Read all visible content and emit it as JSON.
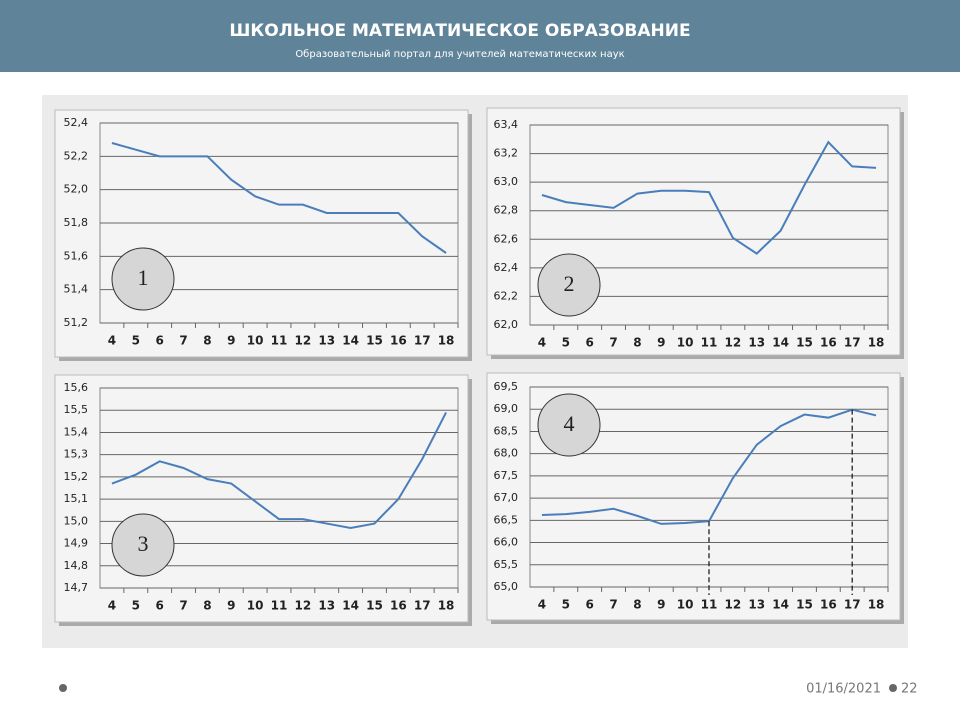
{
  "header": {
    "title": "ШКОЛЬНОЕ МАТЕМАТИЧЕСКОЕ ОБРАЗОВАНИЕ",
    "subtitle": "Образовательный портал для учителей математических наук"
  },
  "footer": {
    "date": "01/16/2021",
    "page": "22"
  },
  "chart_data": [
    {
      "type": "line",
      "annotation": "1",
      "color": "#4a7ebb",
      "grid": true,
      "categories": [
        "4",
        "5",
        "6",
        "7",
        "8",
        "9",
        "10",
        "11",
        "12",
        "13",
        "14",
        "15",
        "16",
        "17",
        "18"
      ],
      "values": [
        52.28,
        52.24,
        52.2,
        52.2,
        52.2,
        52.06,
        51.96,
        51.91,
        51.91,
        51.86,
        51.86,
        51.86,
        51.86,
        51.72,
        51.62
      ],
      "ylim": [
        51.2,
        52.4
      ],
      "yticks": [
        {
          "value": 51.2,
          "label": "51,2"
        },
        {
          "value": 51.4,
          "label": "51,4"
        },
        {
          "value": 51.6,
          "label": "51,6"
        },
        {
          "value": 51.8,
          "label": "51,8"
        },
        {
          "value": 52.0,
          "label": "52,0"
        },
        {
          "value": 52.2,
          "label": "52,2"
        },
        {
          "value": 52.4,
          "label": "52,4"
        }
      ]
    },
    {
      "type": "line",
      "annotation": "2",
      "color": "#4a7ebb",
      "grid": true,
      "categories": [
        "4",
        "5",
        "6",
        "7",
        "8",
        "9",
        "10",
        "11",
        "12",
        "13",
        "14",
        "15",
        "16",
        "17",
        "18"
      ],
      "values": [
        62.91,
        62.86,
        62.84,
        62.82,
        62.92,
        62.94,
        62.94,
        62.93,
        62.61,
        62.5,
        62.66,
        62.98,
        63.28,
        63.11,
        63.1
      ],
      "ylim": [
        62.0,
        63.4
      ],
      "yticks": [
        {
          "value": 62.0,
          "label": "62,0"
        },
        {
          "value": 62.2,
          "label": "62,2"
        },
        {
          "value": 62.4,
          "label": "62,4"
        },
        {
          "value": 62.6,
          "label": "62,6"
        },
        {
          "value": 62.8,
          "label": "62,8"
        },
        {
          "value": 63.0,
          "label": "63,0"
        },
        {
          "value": 63.2,
          "label": "63,2"
        },
        {
          "value": 63.4,
          "label": "63,4"
        }
      ]
    },
    {
      "type": "line",
      "annotation": "3",
      "color": "#4a7ebb",
      "grid": true,
      "categories": [
        "4",
        "5",
        "6",
        "7",
        "8",
        "9",
        "10",
        "11",
        "12",
        "13",
        "14",
        "15",
        "16",
        "17",
        "18"
      ],
      "values": [
        15.17,
        15.21,
        15.27,
        15.24,
        15.19,
        15.17,
        15.09,
        15.01,
        15.01,
        14.99,
        14.97,
        14.99,
        15.1,
        15.28,
        15.49
      ],
      "ylim": [
        14.7,
        15.6
      ],
      "yticks": [
        {
          "value": 14.7,
          "label": "14,7"
        },
        {
          "value": 14.8,
          "label": "14,8"
        },
        {
          "value": 14.9,
          "label": "14,9"
        },
        {
          "value": 15.0,
          "label": "15,0"
        },
        {
          "value": 15.1,
          "label": "15,1"
        },
        {
          "value": 15.2,
          "label": "15,2"
        },
        {
          "value": 15.3,
          "label": "15,3"
        },
        {
          "value": 15.4,
          "label": "15,4"
        },
        {
          "value": 15.5,
          "label": "15,5"
        },
        {
          "value": 15.6,
          "label": "15,6"
        }
      ]
    },
    {
      "type": "line",
      "annotation": "4",
      "color": "#4a7ebb",
      "grid": true,
      "categories": [
        "4",
        "5",
        "6",
        "7",
        "8",
        "9",
        "10",
        "11",
        "12",
        "13",
        "14",
        "15",
        "16",
        "17",
        "18"
      ],
      "values": [
        66.62,
        66.64,
        66.69,
        66.76,
        66.6,
        66.42,
        66.44,
        66.48,
        67.45,
        68.2,
        68.62,
        68.88,
        68.81,
        68.99,
        68.86
      ],
      "markers": [
        7,
        13
      ],
      "ylim": [
        65.0,
        69.5
      ],
      "yticks": [
        {
          "value": 65.0,
          "label": "65,0"
        },
        {
          "value": 65.5,
          "label": "65,5"
        },
        {
          "value": 66.0,
          "label": "66,0"
        },
        {
          "value": 66.5,
          "label": "66,5"
        },
        {
          "value": 67.0,
          "label": "67,0"
        },
        {
          "value": 67.5,
          "label": "67,5"
        },
        {
          "value": 68.0,
          "label": "68,0"
        },
        {
          "value": 68.5,
          "label": "68,5"
        },
        {
          "value": 69.0,
          "label": "69,0"
        },
        {
          "value": 69.5,
          "label": "69,5"
        }
      ]
    }
  ]
}
